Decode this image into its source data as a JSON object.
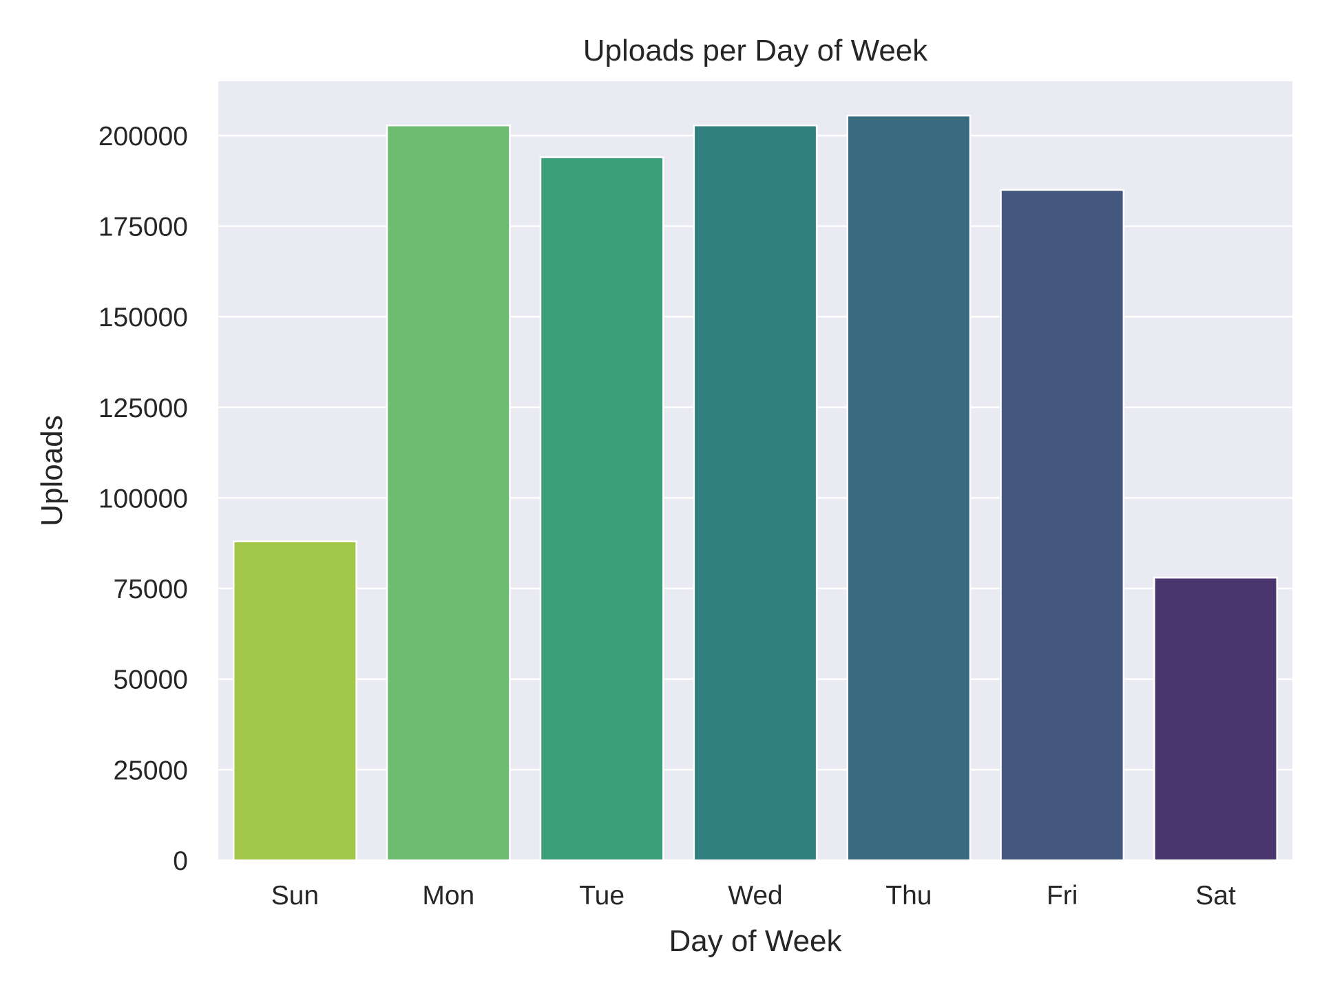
{
  "chart_data": {
    "type": "bar",
    "title": "Uploads per Day of Week",
    "xlabel": "Day of Week",
    "ylabel": "Uploads",
    "categories": [
      "Sun",
      "Mon",
      "Tue",
      "Wed",
      "Thu",
      "Fri",
      "Sat"
    ],
    "values": [
      88000,
      202800,
      194000,
      202800,
      205500,
      185000,
      78000
    ],
    "ylim": [
      0,
      215000
    ],
    "yticks": [
      0,
      25000,
      50000,
      75000,
      100000,
      125000,
      150000,
      175000,
      200000
    ],
    "ytick_labels": [
      "0",
      "25000",
      "50000",
      "75000",
      "100000",
      "125000",
      "150000",
      "175000",
      "200000"
    ],
    "grid": "horizontal",
    "legend": "none",
    "colors": {
      "plot_background": "#eaeaf2",
      "gridline": "#ffffff",
      "text": "#262626",
      "bars": [
        "#a2c649",
        "#6bbc6e",
        "#3a9e7b",
        "#2f807f",
        "#386b80",
        "#44577f",
        "#4a356d"
      ]
    }
  }
}
